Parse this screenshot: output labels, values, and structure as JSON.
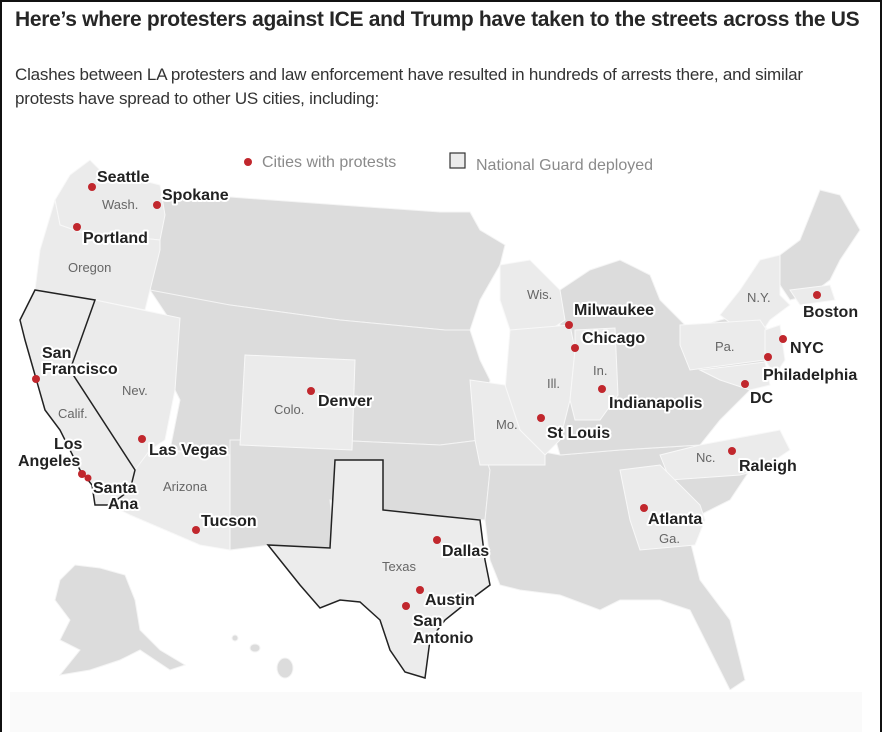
{
  "header": {
    "title": "Here’s where protesters against ICE and Trump have taken to the streets across the US",
    "subtitle": "Clashes between LA protesters and law enforcement have resulted in hundreds of arrests there, and similar protests have spread to other US cities, including:"
  },
  "legend": {
    "cities_label": "Cities with protests",
    "guard_label": "National Guard deployed"
  },
  "colors": {
    "dot": "#c1272d",
    "protest_state": "#ebebeb",
    "other_state": "#dcdcdc",
    "guard_outline": "#222222"
  },
  "states": {
    "wash": "Wash.",
    "oregon": "Oregon",
    "calif": "Calif.",
    "nev": "Nev.",
    "arizona": "Arizona",
    "colo": "Colo.",
    "texas": "Texas",
    "wis": "Wis.",
    "ill": "Ill.",
    "in": "In.",
    "mo": "Mo.",
    "pa": "Pa.",
    "ny": "N.Y.",
    "nc": "Nc.",
    "ga": "Ga."
  },
  "cities": {
    "seattle": "Seattle",
    "spokane": "Spokane",
    "portland": "Portland",
    "san_francisco_1": "San",
    "san_francisco_2": "Francisco",
    "los_angeles_1": "Los",
    "los_angeles_2": "Angeles",
    "santa_ana_1": "Santa",
    "santa_ana_2": "Ana",
    "las_vegas": "Las Vegas",
    "tucson": "Tucson",
    "denver": "Denver",
    "dallas": "Dallas",
    "austin": "Austin",
    "san_antonio_1": "San",
    "san_antonio_2": "Antonio",
    "milwaukee": "Milwaukee",
    "chicago": "Chicago",
    "indianapolis": "Indianapolis",
    "st_louis": "St Louis",
    "boston": "Boston",
    "nyc": "NYC",
    "philadelphia": "Philadelphia",
    "dc": "DC",
    "raleigh": "Raleigh",
    "atlanta": "Atlanta"
  },
  "national_guard_states": [
    "California",
    "Texas"
  ]
}
